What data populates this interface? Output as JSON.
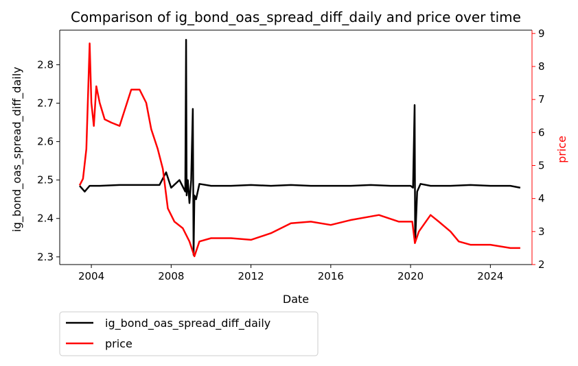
{
  "chart_data": {
    "type": "line",
    "title": "Comparison of ig_bond_oas_spread_diff_daily and price over time",
    "xlabel": "Date",
    "ylabel_left": "ig_bond_oas_spread_diff_daily",
    "ylabel_right": "price",
    "x_ticks": [
      "2004",
      "2008",
      "2012",
      "2016",
      "2020",
      "2024"
    ],
    "xlim": [
      "2002-06-01",
      "2026-02-01"
    ],
    "ylim_left": [
      2.28,
      2.89
    ],
    "ylim_right": [
      2,
      9.1
    ],
    "yticks_left": [
      "2.3",
      "2.4",
      "2.5",
      "2.6",
      "2.7",
      "2.8"
    ],
    "yticks_right": [
      "2",
      "3",
      "4",
      "5",
      "6",
      "7",
      "8",
      "9"
    ],
    "grid": false,
    "legend": {
      "placement": "below-left"
    },
    "colors": {
      "spread": "#000000",
      "price": "#ff0000"
    },
    "series": [
      {
        "name": "ig_bond_oas_spread_diff_daily",
        "axis": "left",
        "points": [
          [
            "2003-06-01",
            2.485
          ],
          [
            "2003-09-01",
            2.47
          ],
          [
            "2003-12-01",
            2.485
          ],
          [
            "2004-06-01",
            2.485
          ],
          [
            "2005-06-01",
            2.487
          ],
          [
            "2006-06-01",
            2.487
          ],
          [
            "2007-06-01",
            2.487
          ],
          [
            "2007-10-01",
            2.52
          ],
          [
            "2008-01-01",
            2.48
          ],
          [
            "2008-06-01",
            2.5
          ],
          [
            "2008-09-15",
            2.47
          ],
          [
            "2008-10-01",
            2.865
          ],
          [
            "2008-10-10",
            2.46
          ],
          [
            "2008-11-01",
            2.5
          ],
          [
            "2008-12-01",
            2.44
          ],
          [
            "2009-01-01",
            2.5
          ],
          [
            "2009-02-01",
            2.685
          ],
          [
            "2009-02-15",
            2.305
          ],
          [
            "2009-03-01",
            2.46
          ],
          [
            "2009-04-01",
            2.45
          ],
          [
            "2009-06-01",
            2.49
          ],
          [
            "2010-01-01",
            2.485
          ],
          [
            "2011-01-01",
            2.485
          ],
          [
            "2012-01-01",
            2.487
          ],
          [
            "2013-01-01",
            2.485
          ],
          [
            "2014-01-01",
            2.487
          ],
          [
            "2015-01-01",
            2.485
          ],
          [
            "2016-01-01",
            2.485
          ],
          [
            "2017-01-01",
            2.485
          ],
          [
            "2018-01-01",
            2.487
          ],
          [
            "2019-01-01",
            2.485
          ],
          [
            "2020-01-01",
            2.485
          ],
          [
            "2020-02-15",
            2.48
          ],
          [
            "2020-03-15",
            2.695
          ],
          [
            "2020-03-25",
            2.34
          ],
          [
            "2020-05-01",
            2.47
          ],
          [
            "2020-07-01",
            2.49
          ],
          [
            "2021-01-01",
            2.485
          ],
          [
            "2022-01-01",
            2.485
          ],
          [
            "2023-01-01",
            2.487
          ],
          [
            "2024-01-01",
            2.485
          ],
          [
            "2025-01-01",
            2.485
          ],
          [
            "2025-07-01",
            2.48
          ]
        ]
      },
      {
        "name": "price",
        "axis": "right",
        "points": [
          [
            "2003-06-01",
            4.4
          ],
          [
            "2003-08-01",
            4.6
          ],
          [
            "2003-10-01",
            5.5
          ],
          [
            "2003-12-01",
            8.7
          ],
          [
            "2004-01-01",
            6.9
          ],
          [
            "2004-02-15",
            6.2
          ],
          [
            "2004-04-01",
            7.4
          ],
          [
            "2004-06-01",
            6.9
          ],
          [
            "2004-09-01",
            6.4
          ],
          [
            "2005-01-01",
            6.3
          ],
          [
            "2005-06-01",
            6.2
          ],
          [
            "2006-01-01",
            7.3
          ],
          [
            "2006-06-01",
            7.3
          ],
          [
            "2006-10-01",
            6.9
          ],
          [
            "2007-01-01",
            6.1
          ],
          [
            "2007-05-01",
            5.5
          ],
          [
            "2007-08-01",
            4.9
          ],
          [
            "2007-11-01",
            3.7
          ],
          [
            "2008-03-01",
            3.3
          ],
          [
            "2008-08-01",
            3.1
          ],
          [
            "2008-12-01",
            2.7
          ],
          [
            "2009-03-01",
            2.25
          ],
          [
            "2009-06-01",
            2.7
          ],
          [
            "2010-01-01",
            2.8
          ],
          [
            "2011-01-01",
            2.8
          ],
          [
            "2012-01-01",
            2.75
          ],
          [
            "2013-01-01",
            2.95
          ],
          [
            "2014-01-01",
            3.25
          ],
          [
            "2015-01-01",
            3.3
          ],
          [
            "2016-01-01",
            3.2
          ],
          [
            "2017-01-01",
            3.35
          ],
          [
            "2018-06-01",
            3.5
          ],
          [
            "2019-06-01",
            3.3
          ],
          [
            "2020-02-01",
            3.3
          ],
          [
            "2020-03-20",
            2.65
          ],
          [
            "2020-06-01",
            3.0
          ],
          [
            "2021-01-01",
            3.5
          ],
          [
            "2021-06-01",
            3.3
          ],
          [
            "2022-01-01",
            3.0
          ],
          [
            "2022-06-01",
            2.7
          ],
          [
            "2023-01-01",
            2.6
          ],
          [
            "2024-01-01",
            2.6
          ],
          [
            "2025-01-01",
            2.5
          ],
          [
            "2025-07-01",
            2.5
          ]
        ]
      }
    ]
  }
}
